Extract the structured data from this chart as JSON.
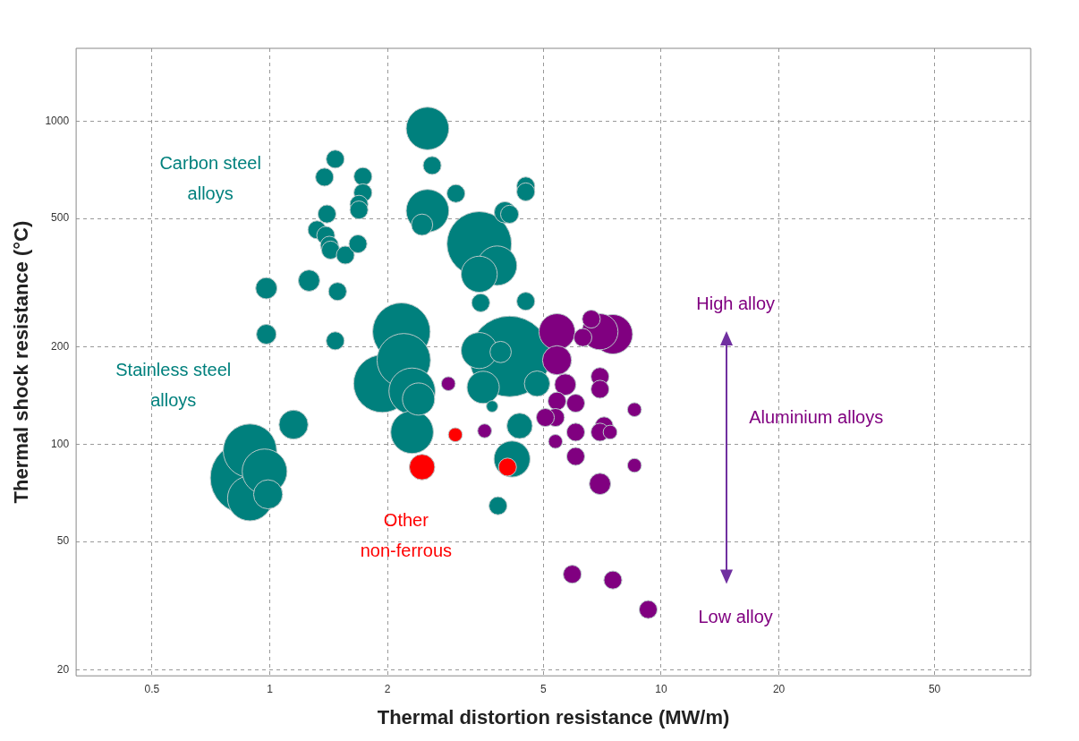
{
  "chart_data": {
    "type": "bubble",
    "xlabel": "Thermal distortion resistance (MW/m)",
    "ylabel": "Thermal shock resistance (°C)",
    "log": "xy",
    "grid": true,
    "xlim": [
      0.32,
      88
    ],
    "xticks": [
      0.5,
      1,
      2,
      5,
      10,
      20,
      50
    ],
    "ylim": [
      19.2,
      1680
    ],
    "yticks": [
      20,
      50,
      100,
      200,
      500,
      1000
    ],
    "series": [
      {
        "name": "Carbon steel alloys",
        "color": "#00807d",
        "x": [
          3.43,
          2.53,
          2.53,
          3.81,
          3.43,
          2.45,
          0.98,
          1.26,
          3.99,
          0.98,
          2.6,
          2.99,
          1.47,
          1.38,
          1.73,
          1.73,
          1.69,
          1.69,
          1.4,
          1.32,
          1.39,
          1.42,
          1.43,
          1.56,
          1.68,
          1.49,
          1.47,
          3.46,
          4.1,
          4.51,
          4.51,
          4.51
        ],
        "values": [
          417,
          949,
          528,
          357,
          336,
          478,
          304,
          321,
          522,
          219,
          729,
          597,
          763,
          671,
          674,
          600,
          553,
          531,
          516,
          461,
          443,
          413,
          399,
          385,
          417,
          297,
          209,
          274,
          515,
          630,
          604,
          277
        ],
        "sizes": [
          0.64,
          0.28,
          0.28,
          0.24,
          0.2,
          0.07,
          0.07,
          0.07,
          0.07,
          0.06,
          0.05,
          0.05,
          0.05,
          0.05,
          0.05,
          0.05,
          0.05,
          0.05,
          0.05,
          0.05,
          0.05,
          0.05,
          0.05,
          0.05,
          0.05,
          0.05,
          0.05,
          0.05,
          0.05,
          0.05,
          0.05,
          0.05
        ]
      },
      {
        "name": "Stainless steel alloys",
        "color": "#00807d",
        "x": [
          4.1,
          0.87,
          2.17,
          1.94,
          2.2,
          0.89,
          2.31,
          0.89,
          0.97,
          2.31,
          3.43,
          4.16,
          2.4,
          3.51,
          1.15,
          0.99,
          4.82,
          4.35,
          3.89,
          3.83,
          3.7
        ],
        "values": [
          187,
          78.7,
          223,
          154,
          182,
          95.5,
          146,
          68,
          82.4,
          109,
          195,
          90,
          138,
          150,
          115,
          70,
          154,
          114,
          193,
          64.5,
          131
        ],
        "sizes": [
          1,
          0.79,
          0.51,
          0.51,
          0.44,
          0.44,
          0.33,
          0.31,
          0.31,
          0.28,
          0.2,
          0.2,
          0.16,
          0.16,
          0.13,
          0.13,
          0.1,
          0.1,
          0.07,
          0.05,
          0.02
        ]
      },
      {
        "name": "Other non-ferrous",
        "color": "#ff0000",
        "x": [
          2.45,
          4.05,
          2.98
        ],
        "values": [
          85,
          85,
          107
        ],
        "sizes": [
          0.1,
          0.05,
          0.03
        ]
      },
      {
        "name": "Aluminium alloys",
        "color": "#800080",
        "x": [
          7.53,
          5.42,
          6.98,
          5.42,
          5.69,
          6.98,
          5.42,
          5.37,
          5.06,
          6.05,
          6.05,
          6.05,
          6.31,
          6.63,
          6.98,
          6.98,
          7.15,
          6.98,
          5.93,
          7.53,
          9.27,
          2.86,
          3.54,
          5.37,
          7.41,
          8.55,
          8.55
        ],
        "values": [
          219,
          223,
          223,
          182,
          153,
          75.4,
          136,
          121,
          121,
          109,
          91.7,
          134,
          214,
          244,
          162,
          148,
          114,
          109,
          39.6,
          38,
          30.8,
          154,
          110,
          102,
          109,
          128,
          86
        ],
        "sizes": [
          0.24,
          0.2,
          0.2,
          0.13,
          0.07,
          0.07,
          0.05,
          0.05,
          0.05,
          0.05,
          0.05,
          0.05,
          0.05,
          0.05,
          0.05,
          0.05,
          0.05,
          0.05,
          0.05,
          0.05,
          0.05,
          0.03,
          0.03,
          0.03,
          0.03,
          0.03,
          0.03
        ]
      }
    ],
    "annotations": [
      "High alloy",
      "Low alloy"
    ]
  }
}
